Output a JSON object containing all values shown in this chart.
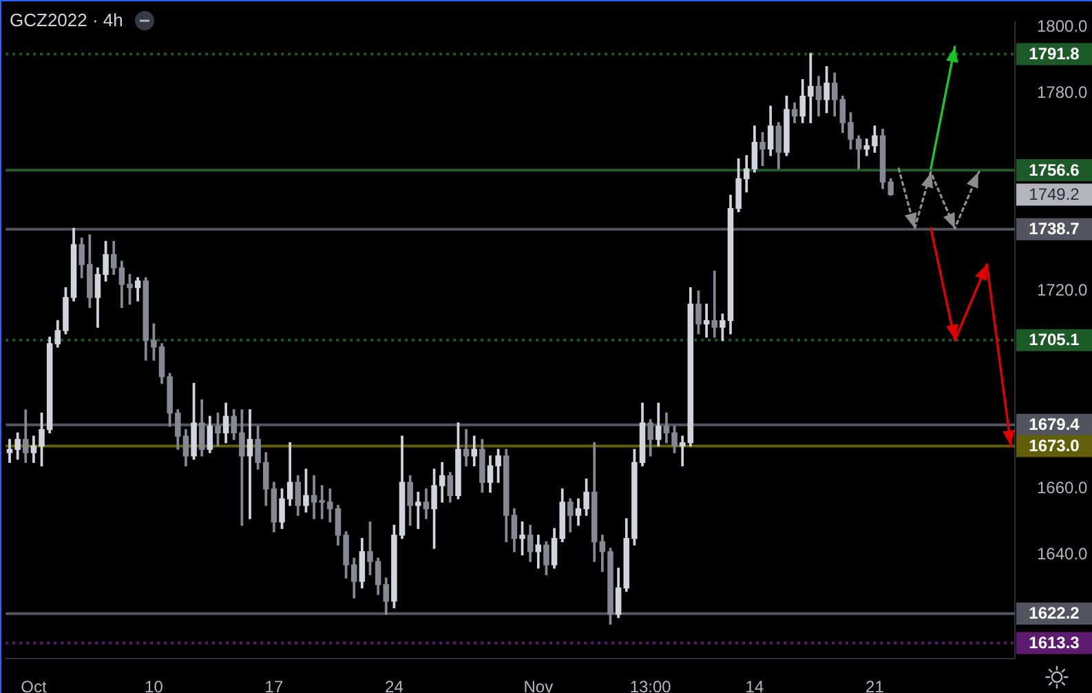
{
  "chart_data": {
    "type": "candlestick",
    "title": "GCZ2022 · 4h",
    "categories": [
      null,
      null,
      null,
      "Oct",
      null,
      null,
      null,
      null,
      null,
      null,
      null,
      null,
      null,
      null,
      null,
      null,
      null,
      null,
      "10",
      null,
      null,
      null,
      null,
      null,
      null,
      null,
      null,
      null,
      null,
      null,
      null,
      null,
      null,
      "17",
      null,
      null,
      null,
      null,
      null,
      null,
      null,
      null,
      null,
      null,
      null,
      null,
      null,
      null,
      "24",
      null,
      null,
      null,
      null,
      null,
      null,
      null,
      null,
      null,
      null,
      null,
      null,
      null,
      null,
      null,
      null,
      null,
      "Nov",
      null,
      null,
      null,
      null,
      null,
      null,
      null,
      null,
      null,
      null,
      null,
      null,
      null,
      "13:00",
      null,
      null,
      null,
      null,
      null,
      null,
      null,
      null,
      null,
      null,
      null,
      null,
      "14",
      null,
      null,
      null,
      null,
      null,
      null,
      null,
      null,
      null,
      null,
      null,
      null,
      null,
      null,
      "21",
      null,
      null,
      null,
      null,
      null,
      null,
      null,
      null,
      null,
      null,
      null,
      null,
      null,
      null,
      null,
      null,
      null
    ],
    "series": [
      {
        "ohlc": [
          [
            1671,
            1675,
            1668,
            1672
          ],
          [
            1672,
            1677,
            1669,
            1675
          ],
          [
            1675,
            1684,
            1668,
            1671
          ],
          [
            1671,
            1676,
            1668,
            1673
          ],
          [
            1673,
            1683,
            1667,
            1678
          ],
          [
            1678,
            1706,
            1677,
            1704
          ],
          [
            1704,
            1711,
            1703,
            1708
          ],
          [
            1708,
            1721,
            1707,
            1718
          ],
          [
            1718,
            1739,
            1717,
            1734
          ],
          [
            1734,
            1736,
            1724,
            1728
          ],
          [
            1728,
            1737,
            1715,
            1718
          ],
          [
            1718,
            1727,
            1709,
            1725
          ],
          [
            1725,
            1735,
            1723,
            1731
          ],
          [
            1731,
            1735,
            1725,
            1727
          ],
          [
            1727,
            1729,
            1715,
            1722
          ],
          [
            1722,
            1725,
            1716,
            1721
          ],
          [
            1721,
            1724,
            1717,
            1723
          ],
          [
            1723,
            1724,
            1699,
            1705
          ],
          [
            1705,
            1710,
            1699,
            1703
          ],
          [
            1703,
            1704,
            1692,
            1694
          ],
          [
            1694,
            1695,
            1679,
            1683
          ],
          [
            1683,
            1684,
            1672,
            1676
          ],
          [
            1676,
            1678,
            1667,
            1670
          ],
          [
            1670,
            1692,
            1669,
            1680
          ],
          [
            1680,
            1687,
            1670,
            1672
          ],
          [
            1672,
            1682,
            1671,
            1679
          ],
          [
            1679,
            1683,
            1673,
            1677
          ],
          [
            1677,
            1686,
            1674,
            1682
          ],
          [
            1682,
            1684,
            1675,
            1677
          ],
          [
            1677,
            1684,
            1649,
            1670
          ],
          [
            1670,
            1684,
            1651,
            1675
          ],
          [
            1675,
            1679,
            1666,
            1668
          ],
          [
            1668,
            1671,
            1655,
            1660
          ],
          [
            1660,
            1662,
            1647,
            1650
          ],
          [
            1650,
            1660,
            1648,
            1657
          ],
          [
            1657,
            1674,
            1655,
            1662
          ],
          [
            1662,
            1664,
            1652,
            1655
          ],
          [
            1655,
            1666,
            1653,
            1658
          ],
          [
            1658,
            1664,
            1651,
            1656
          ],
          [
            1656,
            1661,
            1651,
            1656
          ],
          [
            1656,
            1660,
            1650,
            1654
          ],
          [
            1654,
            1655,
            1643,
            1646
          ],
          [
            1646,
            1647,
            1633,
            1637
          ],
          [
            1637,
            1639,
            1627,
            1632
          ],
          [
            1632,
            1645,
            1630,
            1641
          ],
          [
            1641,
            1650,
            1634,
            1638
          ],
          [
            1638,
            1639,
            1628,
            1631
          ],
          [
            1631,
            1633,
            1622,
            1626
          ],
          [
            1626,
            1649,
            1624,
            1646
          ],
          [
            1646,
            1676,
            1645,
            1662
          ],
          [
            1662,
            1664,
            1649,
            1655
          ],
          [
            1655,
            1659,
            1648,
            1656
          ],
          [
            1656,
            1660,
            1651,
            1654
          ],
          [
            1654,
            1666,
            1642,
            1661
          ],
          [
            1661,
            1668,
            1656,
            1664
          ],
          [
            1664,
            1665,
            1656,
            1658
          ],
          [
            1658,
            1680,
            1657,
            1672
          ],
          [
            1672,
            1678,
            1667,
            1670
          ],
          [
            1670,
            1676,
            1667,
            1672
          ],
          [
            1672,
            1675,
            1659,
            1662
          ],
          [
            1662,
            1670,
            1659,
            1667
          ],
          [
            1667,
            1672,
            1662,
            1670
          ],
          [
            1670,
            1672,
            1644,
            1652
          ],
          [
            1652,
            1654,
            1641,
            1645
          ],
          [
            1645,
            1650,
            1640,
            1646
          ],
          [
            1646,
            1649,
            1638,
            1641
          ],
          [
            1641,
            1646,
            1636,
            1643
          ],
          [
            1643,
            1644,
            1634,
            1637
          ],
          [
            1637,
            1648,
            1636,
            1645
          ],
          [
            1645,
            1660,
            1644,
            1656
          ],
          [
            1656,
            1657,
            1647,
            1652
          ],
          [
            1652,
            1657,
            1649,
            1654
          ],
          [
            1654,
            1663,
            1652,
            1659
          ],
          [
            1659,
            1674,
            1638,
            1644
          ],
          [
            1644,
            1646,
            1635,
            1641
          ],
          [
            1641,
            1642,
            1619,
            1622
          ],
          [
            1622,
            1636,
            1621,
            1630
          ],
          [
            1630,
            1651,
            1629,
            1645
          ],
          [
            1645,
            1672,
            1643,
            1668
          ],
          [
            1668,
            1686,
            1667,
            1680
          ],
          [
            1680,
            1681,
            1670,
            1675
          ],
          [
            1675,
            1686,
            1673,
            1679
          ],
          [
            1679,
            1683,
            1674,
            1677
          ],
          [
            1677,
            1679,
            1671,
            1673
          ],
          [
            1673,
            1676,
            1667,
            1674
          ],
          [
            1674,
            1721,
            1673,
            1716
          ],
          [
            1716,
            1720,
            1707,
            1710
          ],
          [
            1710,
            1716,
            1706,
            1711
          ],
          [
            1711,
            1726,
            1706,
            1709
          ],
          [
            1709,
            1713,
            1705,
            1711
          ],
          [
            1711,
            1749,
            1707,
            1745
          ],
          [
            1745,
            1760,
            1744,
            1754
          ],
          [
            1754,
            1761,
            1750,
            1757
          ],
          [
            1757,
            1770,
            1756,
            1765
          ],
          [
            1765,
            1768,
            1758,
            1763
          ],
          [
            1763,
            1776,
            1761,
            1770
          ],
          [
            1770,
            1771,
            1757,
            1762
          ],
          [
            1762,
            1779,
            1761,
            1775
          ],
          [
            1775,
            1777,
            1771,
            1773
          ],
          [
            1773,
            1784,
            1771,
            1779
          ],
          [
            1779,
            1792,
            1771,
            1782
          ],
          [
            1782,
            1785,
            1773,
            1778
          ],
          [
            1778,
            1788,
            1774,
            1783
          ],
          [
            1783,
            1786,
            1773,
            1778
          ],
          [
            1778,
            1779,
            1768,
            1771
          ],
          [
            1771,
            1774,
            1763,
            1766
          ],
          [
            1766,
            1767,
            1757,
            1763
          ],
          [
            1763,
            1766,
            1761,
            1764
          ],
          [
            1764,
            1770,
            1762,
            1767
          ],
          [
            1767,
            1769,
            1751,
            1753
          ],
          [
            1753,
            1754,
            1749,
            1749.2
          ],
          null,
          null,
          null,
          null,
          null,
          null,
          null,
          null,
          null,
          null,
          null,
          null,
          null,
          null,
          null
        ],
        "colors": [
          "#d1d4dc",
          "#d1d4dc",
          "#868993",
          "#d1d4dc",
          "#d1d4dc",
          "#d1d4dc",
          "#d1d4dc",
          "#d1d4dc",
          "#d1d4dc",
          "#868993",
          "#868993",
          "#d1d4dc",
          "#d1d4dc",
          "#868993",
          "#868993",
          "#868993",
          "#d1d4dc",
          "#868993",
          "#868993",
          "#868993",
          "#868993",
          "#868993",
          "#868993",
          "#d1d4dc",
          "#868993",
          "#d1d4dc",
          "#868993",
          "#d1d4dc",
          "#868993",
          "#868993",
          "#d1d4dc",
          "#868993",
          "#868993",
          "#868993",
          "#d1d4dc",
          "#d1d4dc",
          "#868993",
          "#d1d4dc",
          "#868993",
          "#868993",
          "#868993",
          "#868993",
          "#868993",
          "#868993",
          "#d1d4dc",
          "#868993",
          "#868993",
          "#868993",
          "#d1d4dc",
          "#d1d4dc",
          "#868993",
          "#d1d4dc",
          "#868993",
          "#d1d4dc",
          "#d1d4dc",
          "#868993",
          "#d1d4dc",
          "#868993",
          "#d1d4dc",
          "#868993",
          "#d1d4dc",
          "#d1d4dc",
          "#868993",
          "#868993",
          "#d1d4dc",
          "#868993",
          "#d1d4dc",
          "#868993",
          "#d1d4dc",
          "#d1d4dc",
          "#868993",
          "#d1d4dc",
          "#d1d4dc",
          "#868993",
          "#868993",
          "#868993",
          "#d1d4dc",
          "#d1d4dc",
          "#d1d4dc",
          "#d1d4dc",
          "#868993",
          "#d1d4dc",
          "#868993",
          "#868993",
          "#d1d4dc",
          "#d1d4dc",
          "#868993",
          "#d1d4dc",
          "#868993",
          "#d1d4dc",
          "#d1d4dc",
          "#d1d4dc",
          "#d1d4dc",
          "#d1d4dc",
          "#868993",
          "#d1d4dc",
          "#868993",
          "#d1d4dc",
          "#868993",
          "#d1d4dc",
          "#d1d4dc",
          "#868993",
          "#d1d4dc",
          "#868993",
          "#868993",
          "#868993",
          "#868993",
          "#d1d4dc",
          "#d1d4dc",
          "#868993",
          "#868993",
          null,
          null,
          null,
          null,
          null,
          null,
          null,
          null,
          null,
          null,
          null,
          null,
          null,
          null,
          null
        ],
        "value_labels": [
          null,
          null,
          null,
          null,
          null,
          null,
          null,
          null,
          null,
          null,
          null,
          null,
          null,
          null,
          null,
          null,
          null,
          null,
          null,
          null,
          null,
          null,
          null,
          null,
          null,
          null,
          null,
          null,
          null,
          null,
          null,
          null,
          null,
          null,
          null,
          null,
          null,
          null,
          null,
          null,
          null,
          null,
          null,
          null,
          null,
          null,
          null,
          null,
          null,
          null,
          null,
          null,
          null,
          null,
          null,
          null,
          null,
          null,
          null,
          null,
          null,
          null,
          null,
          null,
          null,
          null,
          null,
          null,
          null,
          null,
          null,
          null,
          null,
          null,
          null,
          null,
          null,
          null,
          null,
          null,
          null,
          null,
          null,
          null,
          null,
          null,
          null,
          null,
          null,
          null,
          null,
          null,
          null,
          null,
          null,
          null,
          null,
          null,
          null,
          null,
          null,
          null,
          null,
          null,
          null,
          null,
          null,
          null,
          null,
          null,
          "1749.2",
          null,
          null,
          null,
          null,
          null,
          null,
          null,
          null,
          null,
          null,
          null,
          null,
          null,
          null,
          null
        ]
      },
      {
        "type": "line",
        "color": "#8c8c8c",
        "line_style": "dotted",
        "values": [
          null,
          null,
          null,
          null,
          null,
          null,
          null,
          null,
          null,
          null,
          null,
          null,
          null,
          null,
          null,
          null,
          null,
          null,
          null,
          null,
          null,
          null,
          null,
          null,
          null,
          null,
          null,
          null,
          null,
          null,
          null,
          null,
          null,
          null,
          null,
          null,
          null,
          null,
          null,
          null,
          null,
          null,
          null,
          null,
          null,
          null,
          null,
          null,
          null,
          null,
          null,
          null,
          null,
          null,
          null,
          null,
          null,
          null,
          null,
          null,
          null,
          null,
          null,
          null,
          null,
          null,
          null,
          null,
          null,
          null,
          null,
          null,
          null,
          null,
          null,
          null,
          null,
          null,
          null,
          null,
          null,
          null,
          null,
          null,
          null,
          null,
          null,
          null,
          null,
          null,
          null,
          null,
          null,
          null,
          null,
          null,
          null,
          null,
          null,
          null,
          null,
          null,
          null,
          null,
          null,
          null,
          null,
          null,
          null,
          null,
          null,
          1757,
          null,
          1739,
          null,
          1756,
          null,
          null,
          1739,
          null,
          null,
          1756,
          null,
          null,
          null,
          null
        ]
      },
      {
        "type": "line",
        "color": "#19c42b",
        "line_style": "solid",
        "values": [
          null,
          null,
          null,
          null,
          null,
          null,
          null,
          null,
          null,
          null,
          null,
          null,
          null,
          null,
          null,
          null,
          null,
          null,
          null,
          null,
          null,
          null,
          null,
          null,
          null,
          null,
          null,
          null,
          null,
          null,
          null,
          null,
          null,
          null,
          null,
          null,
          null,
          null,
          null,
          null,
          null,
          null,
          null,
          null,
          null,
          null,
          null,
          null,
          null,
          null,
          null,
          null,
          null,
          null,
          null,
          null,
          null,
          null,
          null,
          null,
          null,
          null,
          null,
          null,
          null,
          null,
          null,
          null,
          null,
          null,
          null,
          null,
          null,
          null,
          null,
          null,
          null,
          null,
          null,
          null,
          null,
          null,
          null,
          null,
          null,
          null,
          null,
          null,
          null,
          null,
          null,
          null,
          null,
          null,
          null,
          null,
          null,
          null,
          null,
          null,
          null,
          null,
          null,
          null,
          null,
          null,
          null,
          null,
          null,
          null,
          null,
          null,
          null,
          null,
          null,
          1757,
          null,
          null,
          1794,
          null,
          null,
          null,
          null,
          null,
          null,
          null
        ]
      },
      {
        "type": "line",
        "color": "#e00000",
        "line_style": "solid",
        "values": [
          null,
          null,
          null,
          null,
          null,
          null,
          null,
          null,
          null,
          null,
          null,
          null,
          null,
          null,
          null,
          null,
          null,
          null,
          null,
          null,
          null,
          null,
          null,
          null,
          null,
          null,
          null,
          null,
          null,
          null,
          null,
          null,
          null,
          null,
          null,
          null,
          null,
          null,
          null,
          null,
          null,
          null,
          null,
          null,
          null,
          null,
          null,
          null,
          null,
          null,
          null,
          null,
          null,
          null,
          null,
          null,
          null,
          null,
          null,
          null,
          null,
          null,
          null,
          null,
          null,
          null,
          null,
          null,
          null,
          null,
          null,
          null,
          null,
          null,
          null,
          null,
          null,
          null,
          null,
          null,
          null,
          null,
          null,
          null,
          null,
          null,
          null,
          null,
          null,
          null,
          null,
          null,
          null,
          null,
          null,
          null,
          null,
          null,
          null,
          null,
          null,
          null,
          null,
          null,
          null,
          null,
          null,
          null,
          null,
          null,
          null,
          null,
          null,
          null,
          null,
          1739,
          null,
          null,
          1705,
          null,
          null,
          null,
          1728,
          null,
          null,
          1673
        ]
      }
    ],
    "ylim": [
      1608.6,
      1801.4
    ],
    "yticks": [
      {
        "value": 1640,
        "label": "1640.0"
      },
      {
        "value": 1660,
        "label": "1660.0"
      },
      {
        "value": 1720,
        "label": "1720.0"
      },
      {
        "value": 1780,
        "label": "1780.0"
      },
      {
        "value": 1800,
        "label": "1800.0"
      }
    ],
    "ref_lines": [
      {
        "axis": "y",
        "value": 1791.8,
        "label": "1791.8",
        "color": "#1c5a28",
        "line_style": "dotted"
      },
      {
        "axis": "y",
        "value": 1756.6,
        "label": "1756.6",
        "color": "#1c5a28",
        "line_style": "solid"
      },
      {
        "axis": "y",
        "value": 1738.7,
        "label": "1738.7",
        "color": "#52555f",
        "line_style": "solid"
      },
      {
        "axis": "y",
        "value": 1705.1,
        "label": "1705.1",
        "color": "#1c5a28",
        "line_style": "dotted"
      },
      {
        "axis": "y",
        "value": 1679.4,
        "label": "1679.4",
        "color": "#52555f",
        "line_style": "solid"
      },
      {
        "axis": "y",
        "value": 1673.0,
        "label": "1673.0",
        "color": "#625f0b",
        "line_style": "solid"
      },
      {
        "axis": "y",
        "value": 1622.2,
        "label": "1622.2",
        "color": "#52555f",
        "line_style": "solid"
      },
      {
        "axis": "y",
        "value": 1613.3,
        "label": "1613.3",
        "color": "#5c1b6f",
        "line_style": "dotted"
      }
    ]
  }
}
